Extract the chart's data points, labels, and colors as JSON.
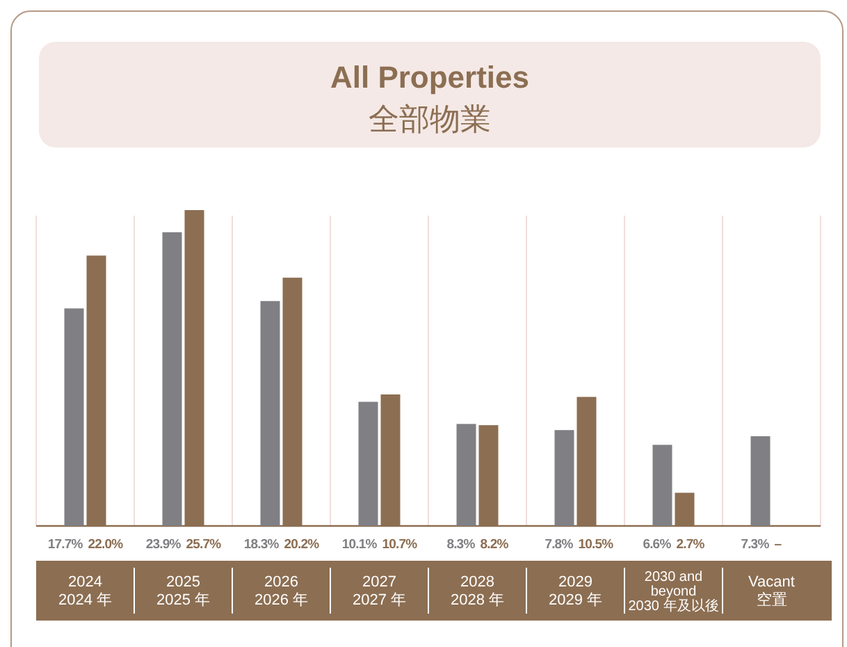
{
  "chart_data": {
    "type": "bar",
    "title": "All Properties",
    "subtitle": "全部物業",
    "categories": [
      "2024\n2024 年",
      "2025\n2025 年",
      "2026\n2026 年",
      "2027\n2027 年",
      "2028\n2028 年",
      "2029\n2029 年",
      "2030 and\nbeyond\n2030 年及以後",
      "Vacant\n空置"
    ],
    "series": [
      {
        "color": "#808084",
        "values": [
          17.7,
          23.9,
          18.3,
          10.1,
          8.3,
          7.8,
          6.6,
          7.3
        ],
        "value_labels": [
          "17.7%",
          "23.9%",
          "18.3%",
          "10.1%",
          "8.3%",
          "7.8%",
          "6.6%",
          "7.3%"
        ]
      },
      {
        "color": "#8c6e52",
        "values": [
          22.0,
          25.7,
          20.2,
          10.7,
          8.2,
          10.5,
          2.7,
          null
        ],
        "value_labels": [
          "22.0%",
          "25.7%",
          "20.2%",
          "10.7%",
          "8.2%",
          "10.5%",
          "2.7%",
          "–"
        ]
      }
    ]
  }
}
